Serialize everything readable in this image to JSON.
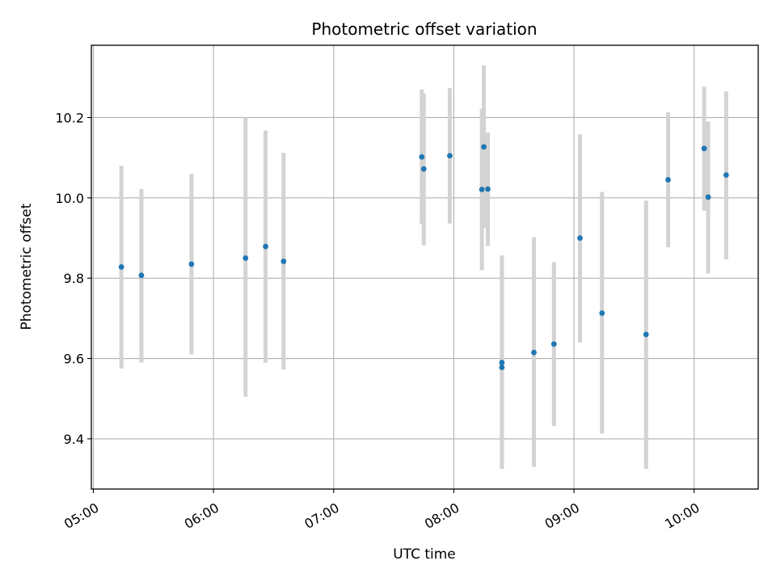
{
  "chart_data": {
    "type": "scatter",
    "title": "Photometric offset variation",
    "xlabel": "UTC time",
    "ylabel": "Photometric offset",
    "xlim": [
      "04:59",
      "10:32"
    ],
    "ylim": [
      9.275,
      10.38
    ],
    "x_ticks": [
      "05:00",
      "06:00",
      "07:00",
      "08:00",
      "09:00",
      "10:00"
    ],
    "y_ticks": [
      9.4,
      9.6,
      9.8,
      10.0,
      10.2
    ],
    "grid": true,
    "colors": {
      "point": "#1f77b4",
      "errorbar": "#d3d3d3",
      "grid": "#b0b0b0"
    },
    "points": [
      {
        "x": "05:14",
        "y": 9.828,
        "ylo": 9.575,
        "yhi": 10.08
      },
      {
        "x": "05:24",
        "y": 9.807,
        "ylo": 9.59,
        "yhi": 10.022
      },
      {
        "x": "05:49",
        "y": 9.835,
        "ylo": 9.61,
        "yhi": 10.06
      },
      {
        "x": "06:16",
        "y": 9.85,
        "ylo": 9.505,
        "yhi": 10.2
      },
      {
        "x": "06:26",
        "y": 9.879,
        "ylo": 9.59,
        "yhi": 10.168
      },
      {
        "x": "06:35",
        "y": 9.842,
        "ylo": 9.573,
        "yhi": 10.112
      },
      {
        "x": "07:44",
        "y": 10.102,
        "ylo": 9.935,
        "yhi": 10.27
      },
      {
        "x": "07:45",
        "y": 10.072,
        "ylo": 9.882,
        "yhi": 10.26
      },
      {
        "x": "07:58",
        "y": 10.105,
        "ylo": 9.936,
        "yhi": 10.273
      },
      {
        "x": "08:14",
        "y": 10.021,
        "ylo": 9.82,
        "yhi": 10.222
      },
      {
        "x": "08:15",
        "y": 10.127,
        "ylo": 9.925,
        "yhi": 10.33
      },
      {
        "x": "08:17",
        "y": 10.022,
        "ylo": 9.88,
        "yhi": 10.163
      },
      {
        "x": "08:24",
        "y": 9.59,
        "ylo": 9.33,
        "yhi": 9.857
      },
      {
        "x": "08:24",
        "y": 9.578,
        "ylo": 9.325,
        "yhi": 9.822
      },
      {
        "x": "08:40",
        "y": 9.615,
        "ylo": 9.33,
        "yhi": 9.902
      },
      {
        "x": "08:50",
        "y": 9.636,
        "ylo": 9.432,
        "yhi": 9.84
      },
      {
        "x": "09:03",
        "y": 9.9,
        "ylo": 9.64,
        "yhi": 10.158
      },
      {
        "x": "09:14",
        "y": 9.713,
        "ylo": 9.413,
        "yhi": 10.015
      },
      {
        "x": "09:36",
        "y": 9.66,
        "ylo": 9.325,
        "yhi": 9.993
      },
      {
        "x": "09:47",
        "y": 10.045,
        "ylo": 9.877,
        "yhi": 10.213
      },
      {
        "x": "10:05",
        "y": 10.123,
        "ylo": 9.968,
        "yhi": 10.277
      },
      {
        "x": "10:07",
        "y": 10.002,
        "ylo": 9.812,
        "yhi": 10.19
      },
      {
        "x": "10:16",
        "y": 10.057,
        "ylo": 9.847,
        "yhi": 10.265
      }
    ]
  }
}
